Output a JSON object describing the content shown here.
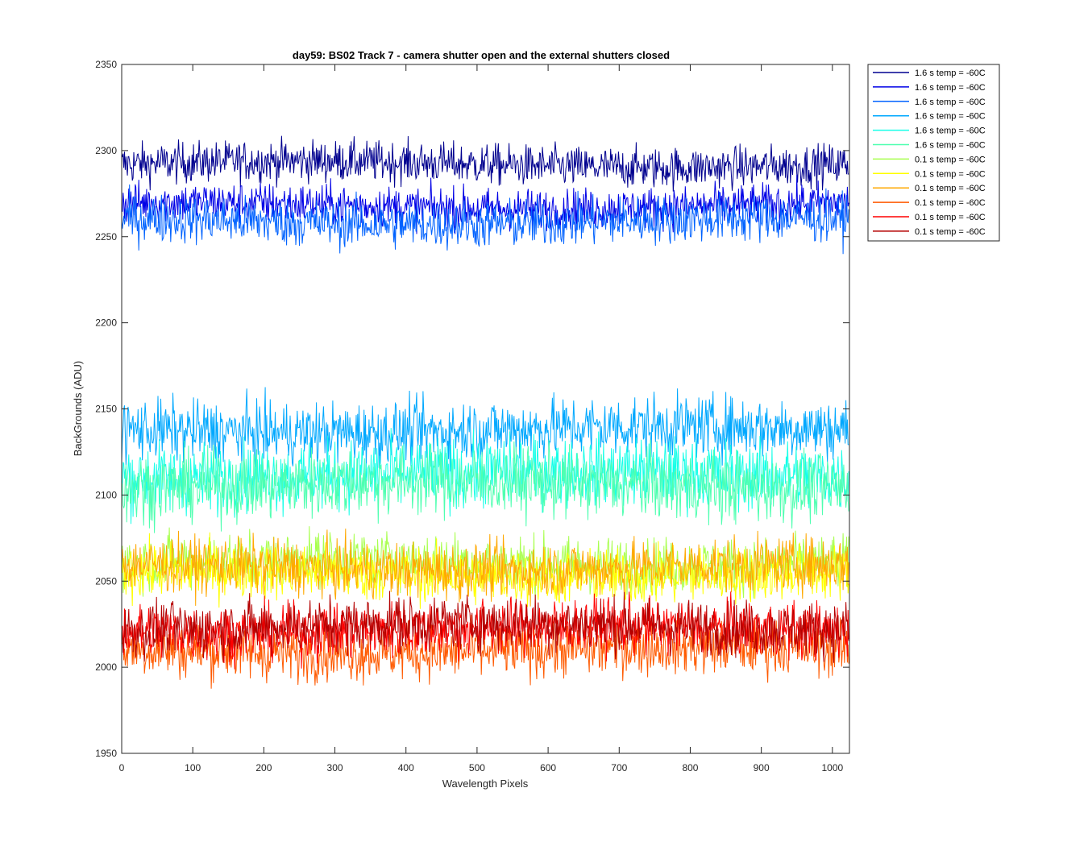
{
  "chart_data": {
    "type": "line",
    "title": "day59: BS02  Track 7 - camera shutter open and the external shutters closed",
    "xlabel": "Wavelength Pixels",
    "ylabel": "BackGrounds (ADU)",
    "xlim": [
      0,
      1024
    ],
    "ylim": [
      1950,
      2350
    ],
    "xticks": [
      0,
      100,
      200,
      300,
      400,
      500,
      600,
      700,
      800,
      900,
      1000
    ],
    "yticks": [
      1950,
      2000,
      2050,
      2100,
      2150,
      2200,
      2250,
      2300,
      2350
    ],
    "grid": false,
    "legend_position": "outside-top-right",
    "series": [
      {
        "name": "1.6 s temp = -60C",
        "color": "#00008f",
        "mean": 2292,
        "spread": 6
      },
      {
        "name": "1.6 s temp = -60C",
        "color": "#0000e6",
        "mean": 2268,
        "spread": 6
      },
      {
        "name": "1.6 s temp = -60C",
        "color": "#0062ff",
        "mean": 2259,
        "spread": 7
      },
      {
        "name": "1.6 s temp = -60C",
        "color": "#00a8ff",
        "mean": 2138,
        "spread": 9
      },
      {
        "name": "1.6 s temp = -60C",
        "color": "#17ffe8",
        "mean": 2112,
        "spread": 10
      },
      {
        "name": "1.6 s temp = -60C",
        "color": "#4effb0",
        "mean": 2106,
        "spread": 10
      },
      {
        "name": "0.1 s temp = -60C",
        "color": "#a8ff4e",
        "mean": 2061,
        "spread": 8
      },
      {
        "name": "0.1 s temp = -60C",
        "color": "#ffff00",
        "mean": 2054,
        "spread": 8
      },
      {
        "name": "0.1 s temp = -60C",
        "color": "#ffa800",
        "mean": 2058,
        "spread": 8
      },
      {
        "name": "0.1 s temp = -60C",
        "color": "#ff5a00",
        "mean": 2010,
        "spread": 8
      },
      {
        "name": "0.1 s temp = -60C",
        "color": "#ff0000",
        "mean": 2022,
        "spread": 8
      },
      {
        "name": "0.1 s temp = -60C",
        "color": "#b40000",
        "mean": 2024,
        "spread": 8
      }
    ]
  }
}
